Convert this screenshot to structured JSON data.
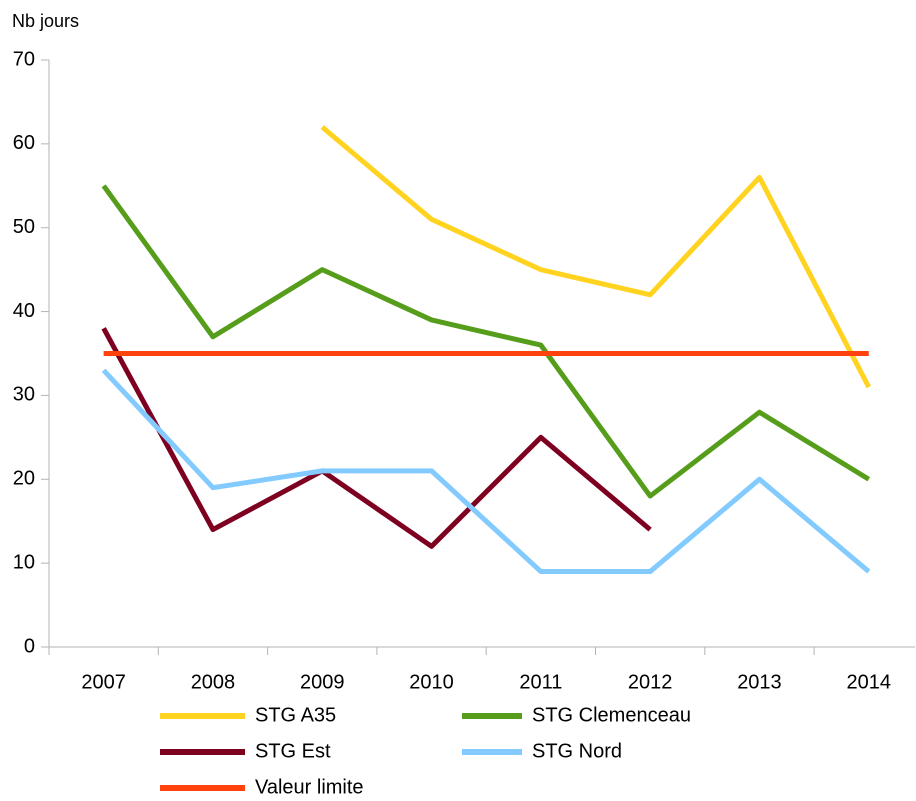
{
  "chart_data": {
    "type": "line",
    "ylabel": "Nb jours",
    "categories": [
      "2007",
      "2008",
      "2009",
      "2010",
      "2011",
      "2012",
      "2013",
      "2014"
    ],
    "series": [
      {
        "name": "STG A35",
        "color": "#ffd320",
        "values": [
          null,
          null,
          62,
          51,
          45,
          42,
          56,
          31
        ]
      },
      {
        "name": "STG Clemenceau",
        "color": "#579d1c",
        "values": [
          55,
          37,
          45,
          39,
          36,
          18,
          28,
          20
        ]
      },
      {
        "name": "STG Est",
        "color": "#7e0021",
        "values": [
          38,
          14,
          21,
          12,
          25,
          14,
          null,
          null
        ]
      },
      {
        "name": "STG Nord",
        "color": "#83caff",
        "values": [
          33,
          19,
          21,
          21,
          9,
          9,
          20,
          9
        ]
      },
      {
        "name": "Valeur limite",
        "color": "#ff420e",
        "values": [
          35,
          35,
          35,
          35,
          35,
          35,
          35,
          35
        ]
      }
    ],
    "ylim": [
      0,
      70
    ],
    "yticks": [
      0,
      10,
      20,
      30,
      40,
      50,
      60,
      70
    ],
    "grid": false
  }
}
